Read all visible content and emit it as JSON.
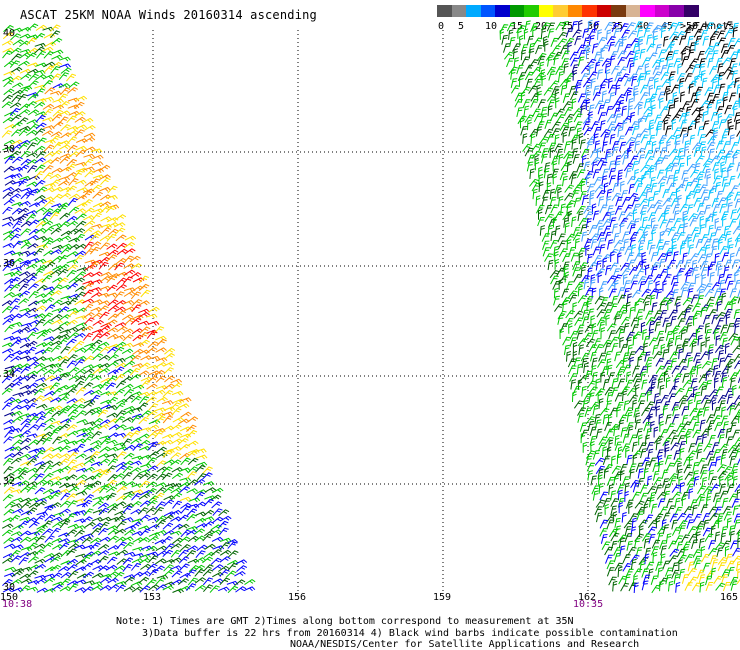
{
  "header": {
    "title": "ASCAT 25KM NOAA Winds 20160314 ascending"
  },
  "legend": {
    "colors": [
      "#555555",
      "#888888",
      "#00aaff",
      "#0055ff",
      "#0000cc",
      "#009900",
      "#22cc00",
      "#ffff00",
      "#ffcc33",
      "#ff8800",
      "#ff3300",
      "#cc0000",
      "#7a3b10",
      "#d8b494",
      "#ff00ff",
      "#cc00cc",
      "#8800aa",
      "#330066"
    ],
    "ticks": [
      "0",
      "5",
      "10",
      "15",
      "20",
      "25",
      "30",
      "35",
      "40",
      "45"
    ],
    "unit": ">50 knots"
  },
  "map": {
    "lat_labels": [
      "40",
      "38",
      "36",
      "34",
      "32",
      "30"
    ],
    "lon_labels": [
      "150",
      "153",
      "156",
      "159",
      "162",
      "165"
    ],
    "swath_colors": {
      "black": "#000000",
      "dark_blue": "#00008b",
      "blue": "#0000ff",
      "dark_green": "#006400",
      "green": "#00c800",
      "yellow": "#ffe000",
      "orange": "#ff8c00",
      "red": "#ff0000",
      "cyan": "#00c8ff",
      "light_blue": "#40a0ff"
    }
  },
  "times": {
    "left": "10:38",
    "right": "10:35"
  },
  "notes": {
    "line1": "Note: 1) Times are GMT 2)Times along bottom correspond to measurement at 35N",
    "line2": "3)Data buffer is 22 hrs from 20160314 4) Black wind barbs indicate possible contamination",
    "line3": "NOAA/NESDIS/Center for Satellite Applications and Research"
  }
}
